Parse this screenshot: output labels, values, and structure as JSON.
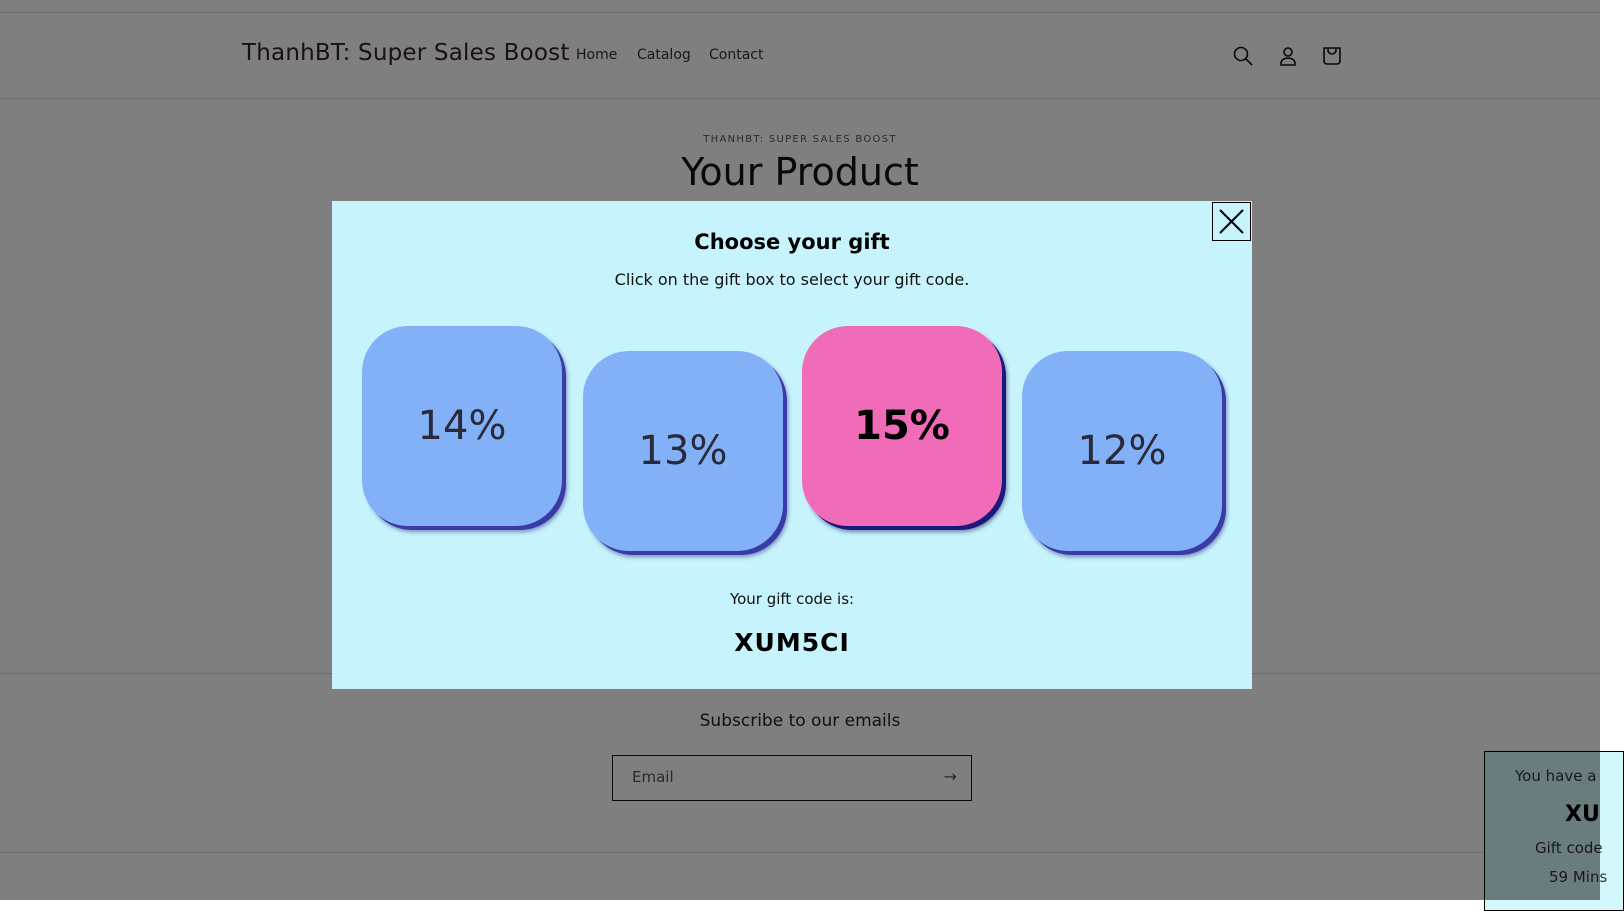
{
  "header": {
    "logo": "ThanhBT: Super Sales Boost",
    "nav": [
      "Home",
      "Catalog",
      "Contact"
    ],
    "icons": [
      "search-icon",
      "account-icon",
      "cart-icon"
    ]
  },
  "page": {
    "eyebrow": "THANHBT: SUPER SALES BOOST",
    "title": "Your Product"
  },
  "footer": {
    "subscribe_title": "Subscribe to our emails",
    "email_placeholder": "Email"
  },
  "toast": {
    "line1": "You have a",
    "code": "XU",
    "line3": "Gift code",
    "line4": "59 Mins"
  },
  "modal": {
    "title": "Choose your gift",
    "subtitle": "Click on the gift box to select your gift code.",
    "gifts": [
      {
        "label": "14%",
        "selected": false
      },
      {
        "label": "13%",
        "selected": false
      },
      {
        "label": "15%",
        "selected": true
      },
      {
        "label": "12%",
        "selected": false
      }
    ],
    "code_label": "Your gift code is:",
    "code": "XUM5CI"
  },
  "colors": {
    "modal_bg": "#c7f3fd",
    "gift_box": "#83b1f7",
    "gift_selected": "#f06cb9",
    "shadow": "#3b3ba8"
  }
}
